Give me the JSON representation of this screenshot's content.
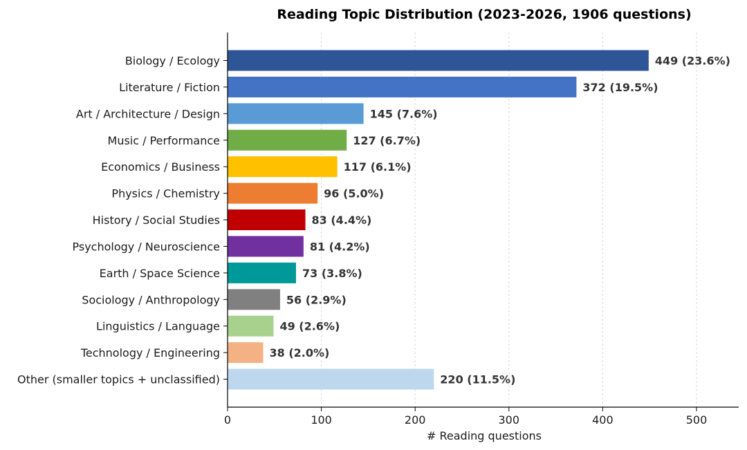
{
  "chart_data": {
    "type": "bar",
    "orientation": "horizontal",
    "title": "Reading Topic Distribution (2023-2026, 1906 questions)",
    "xlabel": "# Reading questions",
    "ylabel": "",
    "xlim": [
      0,
      545
    ],
    "xticks": [
      0,
      100,
      200,
      300,
      400,
      500
    ],
    "grid": "vertical dashed",
    "categories": [
      "Biology / Ecology",
      "Literature / Fiction",
      "Art / Architecture / Design",
      "Music / Performance",
      "Economics / Business",
      "Physics / Chemistry",
      "History / Social Studies",
      "Psychology / Neuroscience",
      "Earth / Space Science",
      "Sociology / Anthropology",
      "Linguistics / Language",
      "Technology / Engineering",
      "Other (smaller topics + unclassified)"
    ],
    "values": [
      449,
      372,
      145,
      127,
      117,
      96,
      83,
      81,
      73,
      56,
      49,
      38,
      220
    ],
    "data_labels": [
      "449  (23.6%)",
      "372  (19.5%)",
      "145  (7.6%)",
      "127  (6.7%)",
      "117  (6.1%)",
      "96  (5.0%)",
      "83  (4.4%)",
      "81  (4.2%)",
      "73  (3.8%)",
      "56  (2.9%)",
      "49  (2.6%)",
      "38  (2.0%)",
      "220  (11.5%)"
    ],
    "colors": [
      "#2e5596",
      "#4472c4",
      "#5b9bd5",
      "#70ad47",
      "#ffc000",
      "#ed7d31",
      "#c00000",
      "#7030a0",
      "#009999",
      "#808080",
      "#a9d18e",
      "#f4b183",
      "#bdd7ee"
    ]
  }
}
